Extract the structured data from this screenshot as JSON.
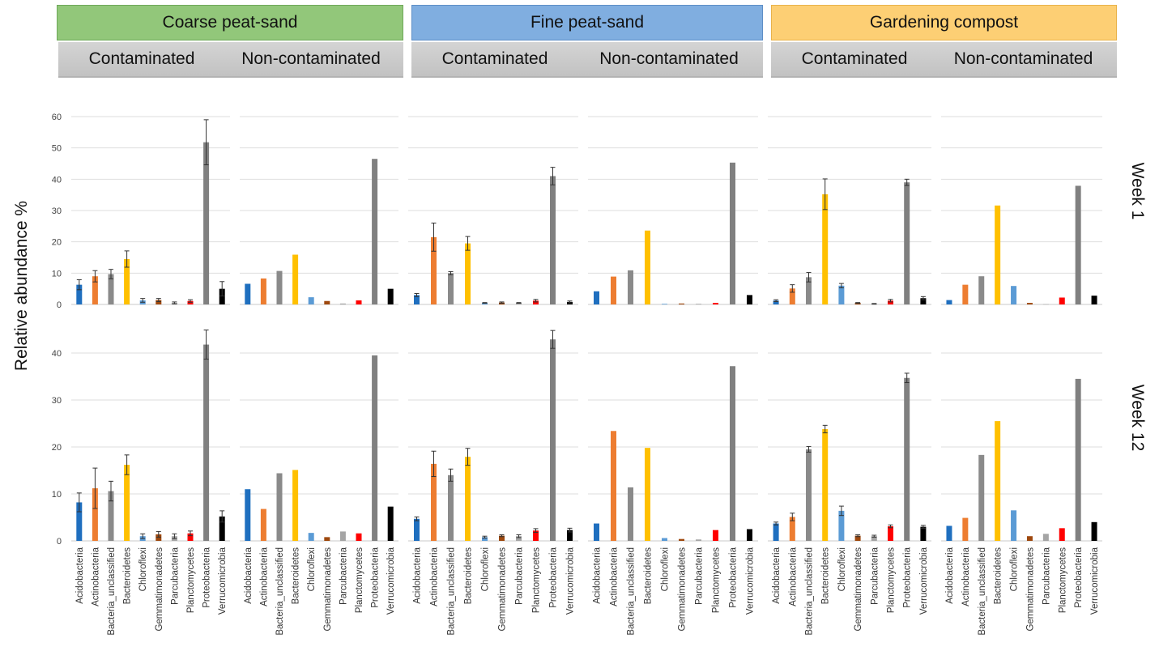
{
  "groups": [
    {
      "label": "Coarse peat-sand",
      "color": "#92c77a"
    },
    {
      "label": "Fine peat-sand",
      "color": "#80aee0"
    },
    {
      "label": "Gardening compost",
      "color": "#fdcf74"
    }
  ],
  "sub_labels": [
    "Contaminated",
    "Non-contaminated"
  ],
  "week_labels": [
    "Week 1",
    "Week 12"
  ],
  "chart_data": {
    "type": "bar",
    "ylabel": "Relative abundance %",
    "categories": [
      "Acidobacteria",
      "Actinobacteria",
      "Bacteria_unclassified",
      "Bacteroidetes",
      "Chloroflexi",
      "Gemmatimonadetes",
      "Parcubacteria",
      "Planctomycetes",
      "Proteobacteria",
      "Verrucomicrobia"
    ],
    "category_colors": [
      "#1f6fbf",
      "#ed7d31",
      "#8a8a8a",
      "#ffc000",
      "#5b9bd5",
      "#9e480e",
      "#a5a5a5",
      "#ff0000",
      "#808080",
      "#000000"
    ],
    "rows": [
      {
        "week": "Week 1",
        "ylim": [
          0,
          60
        ],
        "yticks": [
          0,
          10,
          20,
          30,
          40,
          50,
          60
        ]
      },
      {
        "week": "Week 12",
        "ylim": [
          0,
          45
        ],
        "yticks": [
          0,
          10,
          20,
          30,
          40
        ]
      }
    ],
    "panels": [
      {
        "row": 0,
        "group": "Coarse peat-sand",
        "condition": "Contaminated",
        "values": [
          6.3,
          9.0,
          9.7,
          14.5,
          1.3,
          1.4,
          0.5,
          1.1,
          51.8,
          5.0
        ],
        "errors": [
          1.6,
          1.8,
          1.5,
          2.6,
          0.6,
          0.5,
          0.3,
          0.4,
          7.2,
          2.3
        ]
      },
      {
        "row": 0,
        "group": "Coarse peat-sand",
        "condition": "Non-contaminated",
        "values": [
          6.6,
          8.3,
          10.7,
          15.9,
          2.3,
          1.1,
          0.3,
          1.3,
          46.5,
          5.0
        ],
        "errors": null
      },
      {
        "row": 0,
        "group": "Fine peat-sand",
        "condition": "Contaminated",
        "values": [
          3.0,
          21.5,
          10.0,
          19.5,
          0.5,
          0.6,
          0.5,
          1.2,
          41.0,
          0.8
        ],
        "errors": [
          0.5,
          4.5,
          0.5,
          2.2,
          0.1,
          0.2,
          0.1,
          0.4,
          2.8,
          0.3
        ]
      },
      {
        "row": 0,
        "group": "Fine peat-sand",
        "condition": "Non-contaminated",
        "values": [
          4.2,
          8.9,
          10.9,
          23.6,
          0.2,
          0.3,
          0.2,
          0.5,
          45.3,
          3.0
        ],
        "errors": null
      },
      {
        "row": 0,
        "group": "Gardening compost",
        "condition": "Contaminated",
        "values": [
          1.2,
          5.1,
          8.7,
          35.2,
          6.0,
          0.5,
          0.2,
          1.2,
          39.0,
          2.0
        ],
        "errors": [
          0.3,
          1.2,
          1.5,
          4.9,
          0.7,
          0.1,
          0.1,
          0.4,
          1.0,
          0.5
        ]
      },
      {
        "row": 0,
        "group": "Gardening compost",
        "condition": "Non-contaminated",
        "values": [
          1.4,
          6.3,
          9.0,
          31.6,
          5.9,
          0.5,
          0.1,
          2.2,
          37.9,
          2.8
        ],
        "errors": null
      },
      {
        "row": 1,
        "group": "Coarse peat-sand",
        "condition": "Contaminated",
        "values": [
          8.2,
          11.2,
          10.6,
          16.2,
          1.0,
          1.4,
          1.0,
          1.6,
          41.8,
          5.2
        ],
        "errors": [
          2.0,
          4.3,
          2.1,
          2.1,
          0.5,
          0.6,
          0.5,
          0.5,
          3.1,
          1.2
        ]
      },
      {
        "row": 1,
        "group": "Coarse peat-sand",
        "condition": "Non-contaminated",
        "values": [
          11.0,
          6.8,
          14.4,
          15.1,
          1.7,
          0.8,
          2.0,
          1.6,
          39.5,
          7.3
        ],
        "errors": null
      },
      {
        "row": 1,
        "group": "Fine peat-sand",
        "condition": "Contaminated",
        "values": [
          4.7,
          16.4,
          14.0,
          17.9,
          0.8,
          1.1,
          1.0,
          2.2,
          42.9,
          2.3
        ],
        "errors": [
          0.4,
          2.7,
          1.3,
          1.8,
          0.2,
          0.2,
          0.3,
          0.4,
          1.9,
          0.4
        ]
      },
      {
        "row": 1,
        "group": "Fine peat-sand",
        "condition": "Non-contaminated",
        "values": [
          3.7,
          23.4,
          11.4,
          19.8,
          0.6,
          0.4,
          0.3,
          2.3,
          37.2,
          2.5
        ],
        "errors": null
      },
      {
        "row": 1,
        "group": "Gardening compost",
        "condition": "Contaminated",
        "values": [
          3.7,
          5.1,
          19.5,
          23.8,
          6.4,
          1.1,
          1.0,
          3.1,
          34.7,
          3.0
        ],
        "errors": [
          0.3,
          0.8,
          0.6,
          0.8,
          1.0,
          0.2,
          0.2,
          0.3,
          1.0,
          0.3
        ]
      },
      {
        "row": 1,
        "group": "Gardening compost",
        "condition": "Non-contaminated",
        "values": [
          3.2,
          4.9,
          18.3,
          25.5,
          6.5,
          1.0,
          1.5,
          2.7,
          34.5,
          4.0
        ],
        "errors": null
      }
    ]
  }
}
